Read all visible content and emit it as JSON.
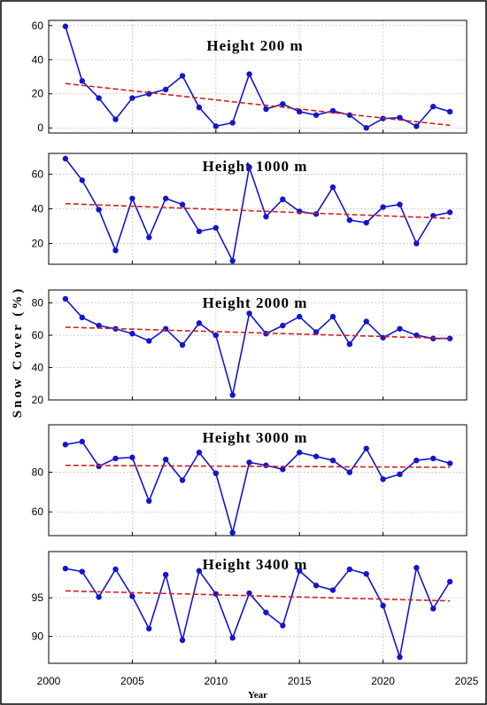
{
  "figure": {
    "ylabel": "Snow Cover (%)",
    "xlabel": "Year",
    "x_ticks": [
      2000,
      2005,
      2010,
      2015,
      2020,
      2025
    ]
  },
  "chart_data": [
    {
      "type": "line",
      "title": "Height 200 m",
      "xlim": [
        2000,
        2025
      ],
      "ylim": [
        -3,
        63
      ],
      "yticks": [
        0,
        20,
        40,
        60
      ],
      "grid": true,
      "x": [
        2001,
        2002,
        2003,
        2004,
        2005,
        2006,
        2007,
        2008,
        2009,
        2010,
        2011,
        2012,
        2013,
        2014,
        2015,
        2016,
        2017,
        2018,
        2019,
        2020,
        2021,
        2022,
        2023,
        2024
      ],
      "series": [
        {
          "values": [
            59.5,
            27.5,
            17.5,
            5,
            17.5,
            20,
            22.5,
            30.5,
            12,
            1,
            3,
            31.5,
            11,
            14,
            9.5,
            7.5,
            10,
            7.5,
            0,
            5.5,
            6,
            1,
            12.5,
            9.5
          ],
          "color": "#1515cc"
        },
        {
          "values": [
            26,
            1.5
          ],
          "x": [
            2001,
            2024
          ],
          "color": "#cc2222"
        }
      ]
    },
    {
      "type": "line",
      "title": "Height 1000 m",
      "xlim": [
        2000,
        2025
      ],
      "ylim": [
        8,
        72
      ],
      "yticks": [
        20,
        40,
        60
      ],
      "grid": true,
      "x": [
        2001,
        2002,
        2003,
        2004,
        2005,
        2006,
        2007,
        2008,
        2009,
        2010,
        2011,
        2012,
        2013,
        2014,
        2015,
        2016,
        2017,
        2018,
        2019,
        2020,
        2021,
        2022,
        2023,
        2024
      ],
      "series": [
        {
          "values": [
            69,
            56.5,
            39.5,
            16,
            46,
            23.5,
            46,
            42.5,
            27,
            29,
            10,
            64,
            35.5,
            45.5,
            38.5,
            37,
            52.5,
            33.5,
            32,
            41,
            42.5,
            20,
            36,
            38
          ],
          "color": "#1515cc"
        },
        {
          "values": [
            43,
            34.5
          ],
          "x": [
            2001,
            2024
          ],
          "color": "#cc2222"
        }
      ]
    },
    {
      "type": "line",
      "title": "Height 2000 m",
      "xlim": [
        2000,
        2025
      ],
      "ylim": [
        20,
        88
      ],
      "yticks": [
        20,
        40,
        60,
        80
      ],
      "grid": true,
      "x": [
        2001,
        2002,
        2003,
        2004,
        2005,
        2006,
        2007,
        2008,
        2009,
        2010,
        2011,
        2012,
        2013,
        2014,
        2015,
        2016,
        2017,
        2018,
        2019,
        2020,
        2021,
        2022,
        2023,
        2024
      ],
      "series": [
        {
          "values": [
            82.5,
            71,
            66,
            64,
            61,
            56.5,
            64,
            54,
            67.5,
            60,
            23,
            73.5,
            61,
            66,
            71.5,
            62,
            71.5,
            54.5,
            68.5,
            58.5,
            64,
            60,
            58,
            58
          ],
          "color": "#1515cc"
        },
        {
          "values": [
            65,
            58
          ],
          "x": [
            2001,
            2024
          ],
          "color": "#cc2222"
        }
      ]
    },
    {
      "type": "line",
      "title": "Height 3000 m",
      "xlim": [
        2000,
        2025
      ],
      "ylim": [
        48,
        104
      ],
      "yticks": [
        60,
        80
      ],
      "grid": true,
      "x": [
        2001,
        2002,
        2003,
        2004,
        2005,
        2006,
        2007,
        2008,
        2009,
        2010,
        2011,
        2012,
        2013,
        2014,
        2015,
        2016,
        2017,
        2018,
        2019,
        2020,
        2021,
        2022,
        2023,
        2024
      ],
      "series": [
        {
          "values": [
            94,
            95.5,
            83,
            87,
            87.5,
            65.5,
            86.5,
            76,
            90,
            79.5,
            49.5,
            85,
            83.5,
            81.5,
            90,
            88,
            86,
            80,
            92,
            76.5,
            79,
            86,
            87,
            84.5
          ],
          "color": "#1515cc"
        },
        {
          "values": [
            83.5,
            82.5
          ],
          "x": [
            2001,
            2024
          ],
          "color": "#cc2222"
        }
      ]
    },
    {
      "type": "line",
      "title": "Height 3400 m",
      "xlim": [
        2000,
        2025
      ],
      "ylim": [
        86.5,
        101
      ],
      "yticks": [
        90,
        95
      ],
      "grid": true,
      "x": [
        2001,
        2002,
        2003,
        2004,
        2005,
        2006,
        2007,
        2008,
        2009,
        2010,
        2011,
        2012,
        2013,
        2014,
        2015,
        2016,
        2017,
        2018,
        2019,
        2020,
        2021,
        2022,
        2023,
        2024
      ],
      "series": [
        {
          "values": [
            98.8,
            98.4,
            95.1,
            98.7,
            95.2,
            91,
            98,
            89.5,
            98.5,
            95.5,
            89.8,
            95.6,
            93.1,
            91.4,
            98.5,
            96.6,
            96,
            98.7,
            98.1,
            94,
            87.3,
            98.9,
            93.6,
            97.1
          ],
          "color": "#1515cc"
        },
        {
          "values": [
            95.9,
            94.6
          ],
          "x": [
            2001,
            2024
          ],
          "color": "#cc2222"
        }
      ]
    }
  ]
}
